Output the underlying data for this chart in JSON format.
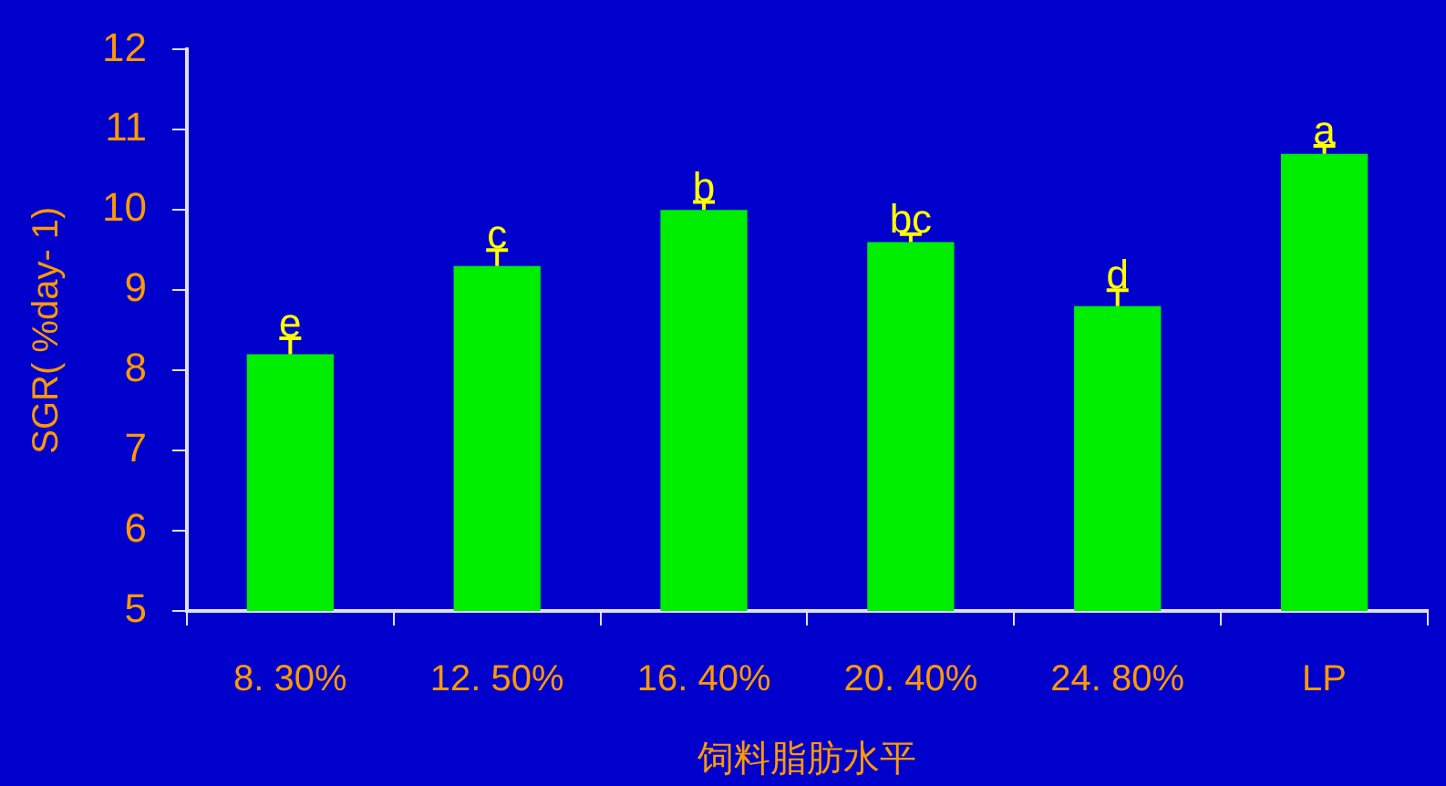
{
  "chart_data": {
    "type": "bar",
    "xlabel": "饲料脂肪水平",
    "ylabel": "SGR( %day- 1)",
    "categories": [
      "8. 30%",
      "12. 50%",
      "16. 40%",
      "20. 40%",
      "24. 80%",
      "LP"
    ],
    "values": [
      8.2,
      9.3,
      10.0,
      9.6,
      8.8,
      10.7
    ],
    "errors": [
      [
        8.2,
        8.4
      ],
      [
        9.3,
        9.5
      ],
      [
        10.0,
        10.1
      ],
      [
        9.6,
        9.7
      ],
      [
        8.8,
        9.0
      ],
      [
        10.7,
        10.8
      ]
    ],
    "color": "#00ee00",
    "ylim": [
      5,
      12
    ],
    "yticks": [
      5,
      6,
      7,
      8,
      9,
      10,
      11,
      12
    ],
    "grid": false,
    "legend": false,
    "annotations": [
      {
        "text": "e",
        "x": "8. 30%",
        "y": 8.4
      },
      {
        "text": "c",
        "x": "12. 50%",
        "y": 9.5
      },
      {
        "text": "b",
        "x": "16. 40%",
        "y": 10.1
      },
      {
        "text": "bc",
        "x": "20. 40%",
        "y": 9.7
      },
      {
        "text": "d",
        "x": "24. 80%",
        "y": 9.0
      },
      {
        "text": "a",
        "x": "LP",
        "y": 10.8
      }
    ]
  }
}
